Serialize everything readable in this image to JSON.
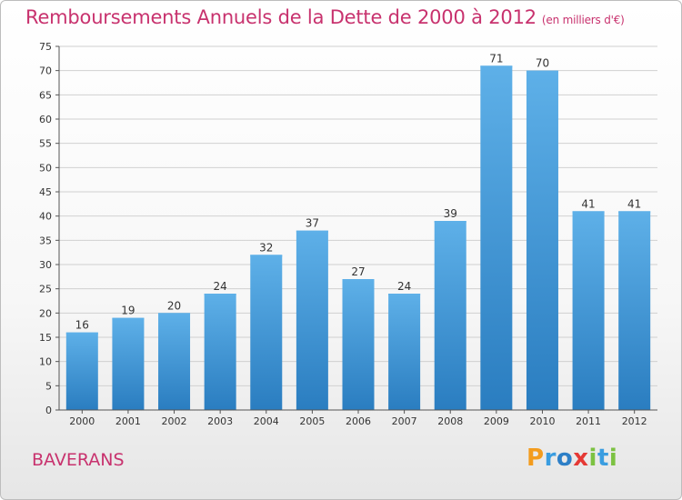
{
  "colors": {
    "title": "#c8326e",
    "bar_top": "#5eb0e8",
    "bar_bottom": "#2a7dc0",
    "grid": "#d0d0d0"
  },
  "header": {
    "title": "Remboursements Annuels de la Dette de 2000 à 2012",
    "subtitle": "(en milliers d'€)"
  },
  "footer": {
    "city": "BAVERANS",
    "logo_letters": [
      {
        "ch": "P",
        "color": "#f39c1e"
      },
      {
        "ch": "r",
        "color": "#3a9de0"
      },
      {
        "ch": "o",
        "color": "#2d7fc7"
      },
      {
        "ch": "x",
        "color": "#e53935"
      },
      {
        "ch": "i",
        "color": "#7cc242"
      },
      {
        "ch": "t",
        "color": "#3a9de0"
      },
      {
        "ch": "i",
        "color": "#7cc242"
      }
    ]
  },
  "chart_data": {
    "type": "bar",
    "title": "Remboursements Annuels de la Dette de 2000 à 2012",
    "subtitle": "(en milliers d'€)",
    "categories": [
      "2000",
      "2001",
      "2002",
      "2003",
      "2004",
      "2005",
      "2006",
      "2007",
      "2008",
      "2009",
      "2010",
      "2011",
      "2012"
    ],
    "values": [
      16,
      19,
      20,
      24,
      32,
      37,
      27,
      24,
      39,
      71,
      70,
      41,
      41
    ],
    "ylim": [
      0,
      75
    ],
    "yticks": [
      0,
      5,
      10,
      15,
      20,
      25,
      30,
      35,
      40,
      45,
      50,
      55,
      60,
      65,
      70,
      75
    ],
    "grid": true,
    "data_labels": true
  }
}
